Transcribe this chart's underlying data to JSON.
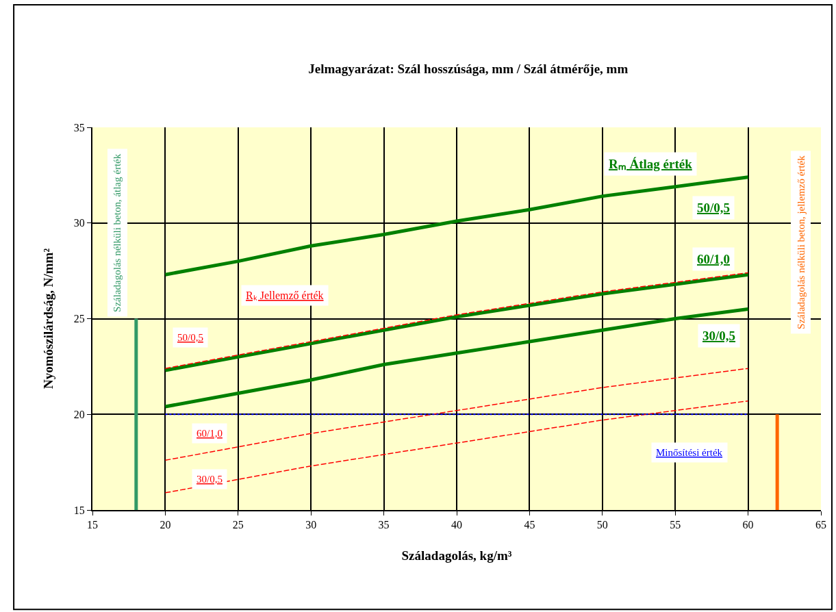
{
  "chart_data": {
    "type": "line",
    "title": "Jelmagyarázat: Szál hosszúsága, mm / Szál átmérője, mm",
    "xlabel": "Száladagolás, kg/m³",
    "ylabel": "Nyomószilárdság, N/mm²",
    "x": [
      20,
      25,
      30,
      35,
      40,
      45,
      50,
      55,
      60
    ],
    "series": [
      {
        "name": "50/0,5",
        "color": "#008000",
        "line_style": "solid",
        "values": [
          27.3,
          28.0,
          28.8,
          29.4,
          30.1,
          30.7,
          31.4,
          31.9,
          32.4
        ]
      },
      {
        "name": "60/1,0",
        "color": "#008000",
        "line_style": "solid",
        "values": [
          22.3,
          23.0,
          23.7,
          24.4,
          25.1,
          25.7,
          26.3,
          26.8,
          27.3
        ]
      },
      {
        "name": "30/0,5",
        "color": "#008000",
        "line_style": "solid",
        "values": [
          20.4,
          21.1,
          21.8,
          22.6,
          23.2,
          23.8,
          24.4,
          25.0,
          25.5
        ]
      },
      {
        "name": "50/0,5",
        "color": "#ff0000",
        "line_style": "dashed",
        "values": [
          22.4,
          23.1,
          23.8,
          24.5,
          25.2,
          25.8,
          26.4,
          26.9,
          27.4
        ]
      },
      {
        "name": "60/1,0",
        "color": "#ff0000",
        "line_style": "dashed",
        "values": [
          17.6,
          18.3,
          19.0,
          19.6,
          20.2,
          20.8,
          21.4,
          21.9,
          22.4
        ]
      },
      {
        "name": "30/0,5",
        "color": "#ff0000",
        "line_style": "dashed",
        "values": [
          15.9,
          16.6,
          17.3,
          17.9,
          18.5,
          19.1,
          19.7,
          20.2,
          20.7
        ]
      },
      {
        "name": "Minősítési érték",
        "color": "#0000ff",
        "line_style": "dotted",
        "x": [
          20,
          60
        ],
        "values": [
          20,
          20
        ]
      },
      {
        "name": "Száladagolás nélküli beton, átlag érték",
        "color": "#339966",
        "line_style": "solid",
        "x": [
          18,
          18
        ],
        "values": [
          15,
          25
        ]
      },
      {
        "name": "Száladagolás nélküli beton, jellemző érték",
        "color": "#ff6600",
        "line_style": "solid",
        "x": [
          62,
          62
        ],
        "values": [
          15,
          20
        ]
      }
    ],
    "annotations": [
      "Rₘ Átlag érték",
      "Rₖ Jellemző érték"
    ],
    "xlim": [
      15,
      65
    ],
    "xticks": [
      15,
      20,
      25,
      30,
      35,
      40,
      45,
      50,
      55,
      60,
      65
    ],
    "ylim": [
      15,
      35
    ],
    "yticks": [
      15,
      20,
      25,
      30,
      35
    ],
    "grid": true,
    "legend": false,
    "marker": "none"
  }
}
